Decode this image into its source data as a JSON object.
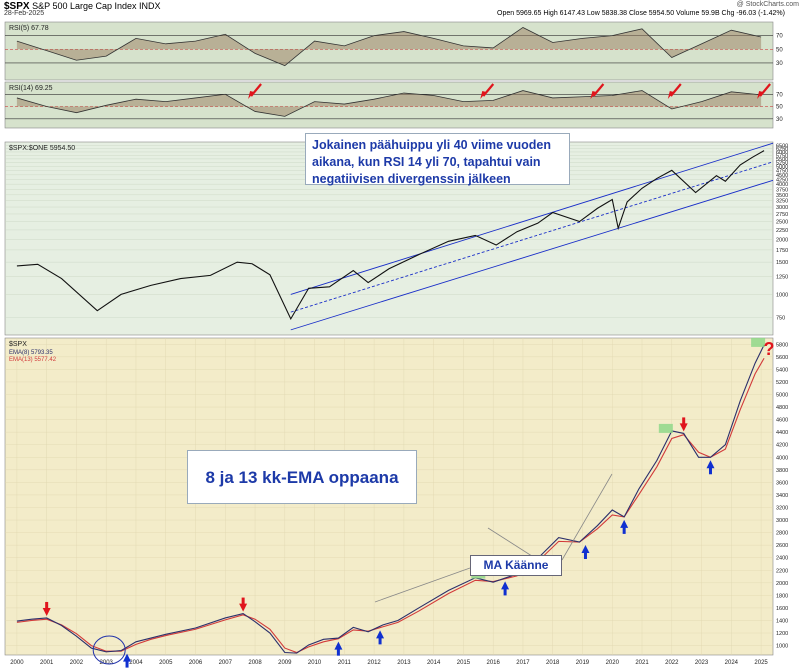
{
  "header": {
    "symbol": "$SPX",
    "name": "S&P 500 Large Cap Index",
    "exchange": "INDX",
    "date": "28-Feb-2025",
    "quote": "Open 5969.65  High 6147.43  Low 5838.38  Close 5954.50  Volume 59.9B  Chg -96.03 (-1.42%)",
    "credit": "@ StockCharts.com"
  },
  "colors": {
    "panel_bg": "#d6e2cc",
    "upper_chart_bg": "#e6efe2",
    "lower_chart_bg": "#f3ecc9",
    "annotation_text": "#1d3aa8",
    "arrow_red": "#e0151d",
    "arrow_blue": "#1030d0",
    "highlight_green": "#8fd88a"
  },
  "annotations": {
    "rsi_note": "Jokainen päähuippu yli 40 viime vuoden aikana, kun RSI 14 yli 70, tapahtui vain negatiivisen divergenssin jälkeen",
    "ema_note": "8 ja 13 kk-EMA oppaana",
    "ma_turn": "MA Käänne",
    "question": "?"
  },
  "chart_data": [
    {
      "type": "line",
      "panel": "rsi5",
      "title": "RSI(5) 67.78",
      "levels": [
        70,
        50,
        30
      ],
      "y_ticks": [
        "70",
        "50",
        "30"
      ],
      "x_range": [
        1999.6,
        2025.4
      ],
      "ylim": [
        5,
        90
      ],
      "x": [
        2000,
        2001,
        2002,
        2003,
        2004,
        2005,
        2006,
        2007,
        2008,
        2009,
        2010,
        2011,
        2012,
        2013,
        2014,
        2015,
        2016,
        2017,
        2018,
        2019,
        2020,
        2021,
        2022,
        2023,
        2024,
        2025
      ],
      "values": [
        62,
        48,
        34,
        40,
        66,
        58,
        62,
        72,
        44,
        26,
        62,
        55,
        70,
        76,
        66,
        55,
        52,
        82,
        60,
        66,
        70,
        80,
        38,
        58,
        78,
        68
      ]
    },
    {
      "type": "line",
      "panel": "rsi14",
      "title": "RSI(14) 69.25",
      "levels": [
        70,
        50,
        30
      ],
      "y_ticks": [
        "70",
        "50",
        "30"
      ],
      "x_range": [
        1999.6,
        2025.4
      ],
      "ylim": [
        15,
        90
      ],
      "x": [
        2000,
        2001,
        2002,
        2003,
        2004,
        2005,
        2006,
        2007,
        2008,
        2009,
        2010,
        2011,
        2012,
        2013,
        2014,
        2015,
        2016,
        2017,
        2018,
        2019,
        2020,
        2021,
        2022,
        2023,
        2024,
        2025
      ],
      "values": [
        64,
        50,
        40,
        52,
        62,
        58,
        64,
        70,
        42,
        34,
        58,
        54,
        62,
        72,
        68,
        58,
        60,
        76,
        64,
        66,
        68,
        76,
        46,
        58,
        74,
        69
      ]
    },
    {
      "type": "line",
      "panel": "price",
      "title": "$SPX:$ONE 5954.50",
      "y_scale": "log",
      "ylim": [
        600,
        6800
      ],
      "y_ticks": [
        750,
        1000,
        1250,
        1500,
        1750,
        2000,
        2250,
        2500,
        2750,
        3000,
        3250,
        3500,
        3750,
        4000,
        4250,
        4500,
        4750,
        5000,
        5250,
        5500,
        5750,
        6000,
        6250,
        6500
      ],
      "x_range": [
        1999.6,
        2025.4
      ],
      "x": [
        2000,
        2000.7,
        2001.5,
        2002.7,
        2003.5,
        2004.5,
        2005.5,
        2006.5,
        2007.4,
        2007.9,
        2008.5,
        2009.2,
        2009.8,
        2010.5,
        2011.3,
        2011.8,
        2012.5,
        2013.5,
        2014.5,
        2015.4,
        2016.1,
        2016.8,
        2017.5,
        2018.0,
        2018.9,
        2019.5,
        2020.0,
        2020.2,
        2020.5,
        2021.0,
        2021.5,
        2022.0,
        2022.8,
        2023.5,
        2023.8,
        2024.3,
        2024.7,
        2025.1
      ],
      "values": [
        1430,
        1460,
        1220,
        815,
        1000,
        1120,
        1220,
        1270,
        1500,
        1470,
        1280,
        735,
        1080,
        1100,
        1350,
        1160,
        1380,
        1650,
        1950,
        2100,
        1860,
        2200,
        2450,
        2800,
        2500,
        2950,
        3300,
        2300,
        3200,
        3800,
        4300,
        4760,
        3600,
        4450,
        4150,
        5100,
        5600,
        6100
      ],
      "channel_upper": [
        [
          2009.2,
          1000
        ],
        [
          2025.4,
          6700
        ]
      ],
      "channel_mid": [
        [
          2009.2,
          800
        ],
        [
          2025.4,
          5300
        ]
      ],
      "channel_lower": [
        [
          2009.2,
          640
        ],
        [
          2025.4,
          4200
        ]
      ]
    },
    {
      "type": "line",
      "panel": "ema",
      "title": "$SPX",
      "series": [
        {
          "name": "EMA(8) 5793.35",
          "color": "#2b2f6b"
        },
        {
          "name": "EMA(13) 5577.42",
          "color": "#d23a3a"
        }
      ],
      "y_ticks": [
        1000,
        1200,
        1400,
        1600,
        1800,
        2000,
        2200,
        2400,
        2600,
        2800,
        3000,
        3200,
        3400,
        3600,
        3800,
        4000,
        4200,
        4400,
        4600,
        4800,
        5000,
        5200,
        5400,
        5600,
        5800
      ],
      "x_ticks": [
        "2000",
        "2001",
        "2002",
        "2003",
        "2004",
        "2005",
        "2006",
        "2007",
        "2008",
        "2009",
        "2010",
        "2011",
        "2012",
        "2013",
        "2014",
        "2015",
        "2016",
        "2017",
        "2018",
        "2019",
        "2020",
        "2021",
        "2022",
        "2023",
        "2024",
        "2025"
      ],
      "ylim": [
        850,
        5900
      ],
      "x_range": [
        1999.6,
        2025.4
      ],
      "x": [
        2000,
        2000.5,
        2001,
        2001.5,
        2002,
        2002.5,
        2003,
        2003.5,
        2004,
        2004.5,
        2005,
        2006,
        2007,
        2007.6,
        2008,
        2008.5,
        2009,
        2009.4,
        2009.8,
        2010.3,
        2010.8,
        2011.3,
        2011.8,
        2012.3,
        2012.8,
        2013.5,
        2014.5,
        2015.4,
        2016.0,
        2016.8,
        2017.5,
        2018.2,
        2018.9,
        2019.5,
        2020.0,
        2020.4,
        2020.9,
        2021.5,
        2022.0,
        2022.4,
        2022.9,
        2023.3,
        2023.8,
        2024.3,
        2024.8,
        2025.1
      ],
      "ema8": [
        1390,
        1420,
        1440,
        1320,
        1150,
        960,
        900,
        920,
        1060,
        1120,
        1180,
        1280,
        1440,
        1510,
        1380,
        1200,
        890,
        880,
        1010,
        1100,
        1120,
        1290,
        1220,
        1330,
        1400,
        1600,
        1880,
        2080,
        2010,
        2140,
        2390,
        2720,
        2650,
        2910,
        3160,
        3050,
        3500,
        3950,
        4420,
        4380,
        4000,
        4000,
        4200,
        4900,
        5500,
        5790
      ],
      "ema13": [
        1370,
        1400,
        1420,
        1330,
        1190,
        1000,
        910,
        910,
        1020,
        1100,
        1160,
        1260,
        1410,
        1490,
        1420,
        1260,
        960,
        890,
        980,
        1060,
        1110,
        1250,
        1230,
        1300,
        1370,
        1550,
        1830,
        2040,
        2020,
        2110,
        2340,
        2660,
        2650,
        2860,
        3080,
        3050,
        3410,
        3850,
        4300,
        4360,
        4080,
        4000,
        4130,
        4760,
        5330,
        5577
      ]
    }
  ]
}
